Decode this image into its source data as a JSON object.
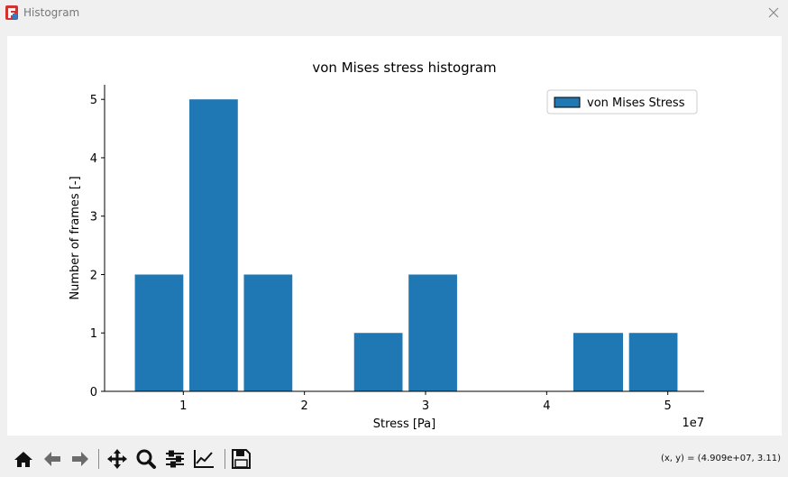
{
  "window": {
    "title": "Histogram",
    "app_icon": "freecad-icon",
    "close_icon": "close-icon"
  },
  "toolbar": {
    "buttons": [
      {
        "name": "home-button",
        "icon": "home-icon"
      },
      {
        "name": "back-button",
        "icon": "arrow-left-icon"
      },
      {
        "name": "forward-button",
        "icon": "arrow-right-icon"
      },
      {
        "name": "pan-button",
        "icon": "move-icon"
      },
      {
        "name": "zoom-button",
        "icon": "magnifier-icon"
      },
      {
        "name": "subplots-button",
        "icon": "sliders-icon"
      },
      {
        "name": "edit-axis-button",
        "icon": "line-chart-icon"
      },
      {
        "name": "save-button",
        "icon": "floppy-disk-icon"
      }
    ],
    "coordinates": "(x, y) = (4.909e+07, 3.11)"
  },
  "chart_data": {
    "type": "bar",
    "title": "von Mises stress histogram",
    "xlabel": "Stress [Pa]",
    "ylabel": "Number of frames [-]",
    "x_offset_label": "1e7",
    "x_ticks": [
      1,
      2,
      3,
      4,
      5
    ],
    "x_tick_labels": [
      "1",
      "2",
      "3",
      "4",
      "5"
    ],
    "y_ticks": [
      0,
      1,
      2,
      3,
      4,
      5
    ],
    "y_tick_labels": [
      "0",
      "1",
      "2",
      "3",
      "4",
      "5"
    ],
    "xlim": [
      0.35,
      5.3
    ],
    "ylim": [
      0,
      5.25
    ],
    "grid": false,
    "legend_position": "top-right",
    "bar_color": "#1f77b4",
    "series": [
      {
        "name": "von Mises Stress",
        "bins": [
          {
            "x0": 0.6,
            "x1": 1.0,
            "count": 2
          },
          {
            "x0": 1.05,
            "x1": 1.45,
            "count": 5
          },
          {
            "x0": 1.5,
            "x1": 1.9,
            "count": 2
          },
          {
            "x0": 1.95,
            "x1": 2.36,
            "count": 0
          },
          {
            "x0": 2.41,
            "x1": 2.81,
            "count": 1
          },
          {
            "x0": 2.86,
            "x1": 3.26,
            "count": 2
          },
          {
            "x0": 3.31,
            "x1": 3.72,
            "count": 0
          },
          {
            "x0": 3.77,
            "x1": 4.17,
            "count": 0
          },
          {
            "x0": 4.22,
            "x1": 4.63,
            "count": 1
          },
          {
            "x0": 4.68,
            "x1": 5.08,
            "count": 1
          }
        ]
      }
    ]
  }
}
